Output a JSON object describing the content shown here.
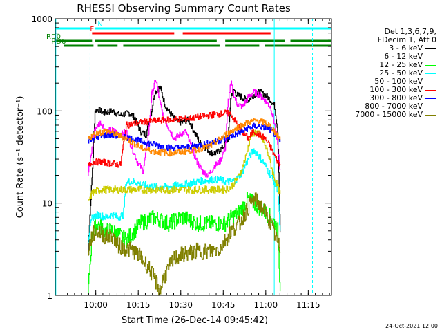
{
  "chart_data": {
    "type": "line",
    "title": "RHESSI Observing Summary Count Rates",
    "xlabel": "Start Time (26-Dec-14 09:45:42)",
    "ylabel": "Count Rate (s⁻¹ detector⁻¹)",
    "x_unit": "minutes",
    "xlim": [
      0,
      97.5
    ],
    "ylim": [
      1,
      1000
    ],
    "y_scale": "log",
    "grid": false,
    "x_ticks": [
      {
        "value": 14.3,
        "label": "10:00"
      },
      {
        "value": 29.3,
        "label": "10:15"
      },
      {
        "value": 44.3,
        "label": "10:30"
      },
      {
        "value": 59.3,
        "label": "10:45"
      },
      {
        "value": 74.3,
        "label": "11:00"
      },
      {
        "value": 89.3,
        "label": "11:15"
      }
    ],
    "y_ticks": [
      {
        "value": 1,
        "label": "1"
      },
      {
        "value": 10,
        "label": "10"
      },
      {
        "value": 100,
        "label": "100"
      },
      {
        "value": 1000,
        "label": "1000"
      }
    ],
    "legend": {
      "placement": "right",
      "header": [
        "Det 1,3,6,7,9,",
        "FDecim 1, Att 0"
      ]
    },
    "series": [
      {
        "name": "3 - 6 keV",
        "color": "#000000",
        "x": [
          11.5,
          13,
          14,
          15,
          17,
          20,
          23,
          26,
          28,
          30,
          32,
          34,
          35,
          37,
          38,
          39,
          41,
          43,
          45,
          47,
          49,
          51,
          53,
          55,
          57,
          59,
          61,
          62,
          63,
          64,
          66,
          68,
          70,
          72,
          74,
          76,
          77.5,
          78.5,
          79.5
        ],
        "y": [
          3,
          20,
          100,
          105,
          95,
          100,
          90,
          95,
          85,
          60,
          55,
          100,
          160,
          180,
          140,
          110,
          90,
          75,
          75,
          80,
          60,
          45,
          40,
          35,
          35,
          40,
          50,
          150,
          170,
          150,
          140,
          130,
          150,
          160,
          150,
          130,
          110,
          60,
          3
        ]
      },
      {
        "name": "6 - 12 keV",
        "color": "#ff00ff",
        "x": [
          11.5,
          13,
          14,
          16,
          18,
          20,
          23,
          25,
          27,
          29,
          31,
          33,
          34,
          35.5,
          37,
          38,
          40,
          42,
          44,
          46,
          48,
          50,
          52,
          54,
          56,
          58,
          60,
          61,
          62,
          63,
          64,
          66,
          68,
          70,
          72,
          74,
          76,
          77.5,
          78.5,
          79.5
        ],
        "y": [
          20,
          40,
          65,
          75,
          60,
          62,
          55,
          60,
          40,
          28,
          22,
          60,
          150,
          220,
          120,
          90,
          65,
          50,
          55,
          60,
          40,
          28,
          22,
          20,
          25,
          28,
          40,
          130,
          200,
          150,
          120,
          110,
          140,
          160,
          150,
          130,
          110,
          70,
          40,
          20
        ]
      },
      {
        "name": "12 - 25 keV",
        "color": "#00ff00",
        "x": [
          11.5,
          13,
          15,
          17,
          20,
          25,
          28,
          30,
          35,
          40,
          45,
          50,
          55,
          60,
          62,
          65,
          68,
          70,
          72,
          74,
          76,
          77.5,
          78.5,
          79.5
        ],
        "y": [
          1,
          5,
          6,
          5,
          5,
          4,
          5,
          6,
          7,
          6,
          7,
          6,
          6,
          6,
          7,
          8,
          11,
          10,
          9,
          8,
          7,
          6,
          5,
          1
        ]
      },
      {
        "name": "25 - 50 keV",
        "color": "#00ffff",
        "x": [
          11.5,
          13,
          15,
          18,
          20,
          22,
          24,
          25,
          28,
          30,
          35,
          40,
          45,
          50,
          55,
          58,
          60,
          62,
          64,
          66,
          68,
          70,
          72,
          74,
          76,
          77.5,
          78.5,
          79.5
        ],
        "y": [
          4,
          7,
          7.5,
          7,
          7.5,
          7,
          7.5,
          17,
          17,
          16,
          15,
          15,
          16,
          17,
          18,
          18,
          17,
          17,
          18,
          22,
          30,
          38,
          32,
          26,
          20,
          16,
          14,
          4
        ]
      },
      {
        "name": "50 - 100 keV",
        "color": "#cccc00",
        "x": [
          11.5,
          13,
          16,
          20,
          25,
          30,
          35,
          40,
          45,
          50,
          55,
          60,
          62,
          65,
          67,
          69,
          71,
          73,
          75,
          77,
          78.5,
          79.5
        ],
        "y": [
          10,
          13,
          14,
          14,
          14,
          14,
          14,
          14,
          14,
          14,
          14,
          14,
          15,
          20,
          30,
          55,
          60,
          50,
          35,
          20,
          15,
          12
        ]
      },
      {
        "name": "100 - 300 keV",
        "color": "#ff0000",
        "x": [
          11.5,
          13,
          16,
          20,
          23,
          25,
          30,
          35,
          40,
          45,
          50,
          55,
          60,
          62,
          65,
          68,
          70,
          72,
          74,
          76,
          78,
          79.5
        ],
        "y": [
          25,
          28,
          28,
          27,
          26,
          70,
          75,
          78,
          80,
          82,
          85,
          90,
          95,
          92,
          65,
          50,
          60,
          55,
          50,
          40,
          30,
          25
        ]
      },
      {
        "name": "300 - 800 keV",
        "color": "#0000ff",
        "x": [
          11.5,
          13,
          15,
          18,
          20,
          25,
          30,
          35,
          40,
          45,
          50,
          55,
          60,
          65,
          68,
          70,
          72,
          75,
          77,
          79.5
        ],
        "y": [
          48,
          50,
          52,
          55,
          55,
          52,
          47,
          43,
          40,
          40,
          42,
          45,
          50,
          58,
          65,
          68,
          68,
          65,
          58,
          45
        ]
      },
      {
        "name": "800 - 7000 keV",
        "color": "#ff8800",
        "x": [
          11.5,
          13,
          15,
          18,
          20,
          25,
          30,
          35,
          40,
          45,
          50,
          55,
          60,
          65,
          68,
          70,
          72,
          75,
          77,
          79.5
        ],
        "y": [
          50,
          54,
          58,
          60,
          58,
          50,
          40,
          36,
          35,
          36,
          38,
          42,
          55,
          68,
          75,
          78,
          78,
          72,
          62,
          48
        ]
      },
      {
        "name": "7000 - 15000 keV",
        "color": "#808000",
        "x": [
          11.5,
          13,
          15,
          18,
          20,
          22,
          25,
          28,
          30,
          33,
          35,
          37,
          38,
          40,
          42,
          45,
          50,
          55,
          58,
          60,
          62,
          65,
          68,
          70,
          72,
          74,
          76,
          78,
          79.5
        ],
        "y": [
          3,
          4.5,
          5,
          4.2,
          4.5,
          3.5,
          3.2,
          3,
          2.6,
          2,
          1.5,
          1.1,
          1.5,
          2,
          2.5,
          2.8,
          3,
          3,
          3.2,
          4,
          5,
          6,
          9,
          11,
          10,
          8,
          6,
          4,
          3
        ]
      }
    ],
    "flag_bars": [
      {
        "label": "N",
        "color": "#00ffff",
        "segments": [
          [
            0,
            12.5
          ],
          [
            14,
            97.5
          ]
        ],
        "labeled_segment": 1
      },
      {
        "label": "F",
        "color": "#ff0000",
        "segments": [
          [
            13,
            42
          ],
          [
            45,
            76
          ]
        ],
        "labeled_segment": 0
      },
      {
        "label": "RD0",
        "color": "#008000",
        "segments": [
          [
            0,
            13
          ],
          [
            14,
            57
          ],
          [
            60,
            81
          ],
          [
            83,
            97.5
          ]
        ],
        "labeled_segment": 0
      },
      {
        "label": "RD6",
        "color": "#008000",
        "segments": [
          [
            3,
            13.5
          ],
          [
            15,
            22
          ],
          [
            24,
            58
          ],
          [
            60,
            72
          ],
          [
            74,
            97.5
          ]
        ],
        "labeled_segment": 0
      }
    ],
    "markers": [
      {
        "x": 0.2,
        "color": "#00ffff",
        "style": "solid"
      },
      {
        "x": 12.3,
        "color": "#00ffff",
        "style": "dashed"
      },
      {
        "x": 77.3,
        "color": "#00ffff",
        "style": "solid"
      },
      {
        "x": 90.8,
        "color": "#00ffff",
        "style": "dashed"
      }
    ]
  },
  "timestamp": "24-Oct-2021 12:00"
}
